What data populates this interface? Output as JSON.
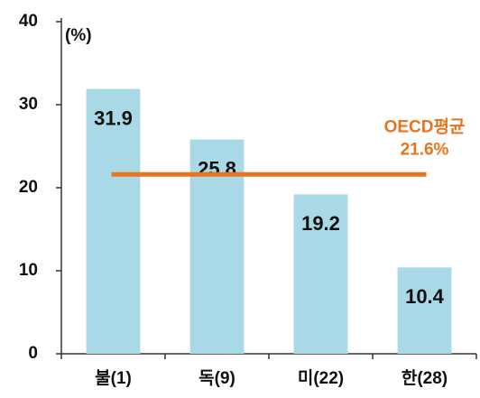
{
  "chart_data": {
    "type": "bar",
    "y_unit_label": "(%)",
    "categories": [
      "불(1)",
      "독(9)",
      "미(22)",
      "한(28)"
    ],
    "values": [
      31.9,
      25.8,
      19.2,
      10.4
    ],
    "color": "#a9d9e7",
    "ylim": [
      0,
      40
    ],
    "yticks": [
      0,
      10,
      20,
      30,
      40
    ],
    "grid": false,
    "reference_line": {
      "name": "OECD평균",
      "value": 21.6,
      "value_label": "21.6%",
      "color": "#e8741e"
    }
  }
}
